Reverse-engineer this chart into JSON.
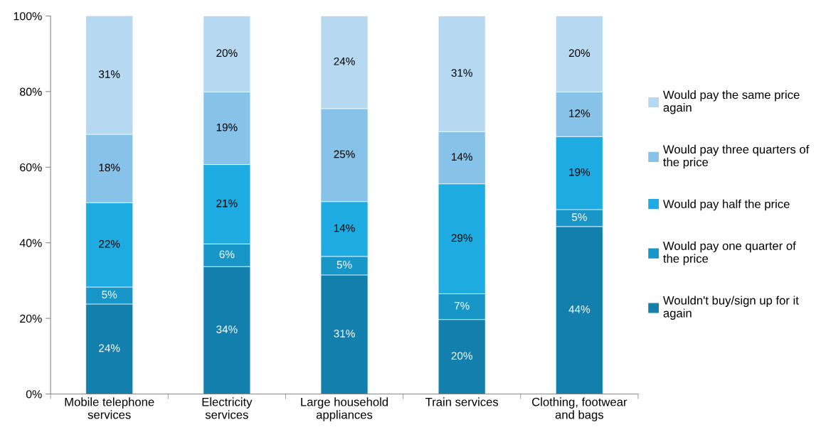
{
  "chart_data": {
    "type": "bar",
    "stacked": true,
    "categories": [
      "Mobile telephone services",
      "Electricity services",
      "Large household appliances",
      "Train services",
      "Clothing, footwear and bags"
    ],
    "series": [
      {
        "name": "Wouldn't buy/sign up for it again",
        "color": "#137fac",
        "values": [
          23.8,
          33.7,
          31.5,
          19.7,
          44.3
        ],
        "value_labels": [
          "24%",
          "34%",
          "31%",
          "20%",
          "44%"
        ]
      },
      {
        "name": "Would pay one quarter of the price",
        "color": "#1896c8",
        "values": [
          4.5,
          6.0,
          4.9,
          6.8,
          4.5
        ],
        "value_labels": [
          "5%",
          "6%",
          "5%",
          "7%",
          "5%"
        ]
      },
      {
        "name": "Would pay half the price",
        "color": "#1eabe1",
        "values": [
          22.3,
          21.0,
          14.5,
          29.1,
          19.3
        ],
        "value_labels": [
          "22%",
          "21%",
          "14%",
          "29%",
          "19%"
        ]
      },
      {
        "name": "Would pay three quarters of the price",
        "color": "#87c3e9",
        "values": [
          18.1,
          19.2,
          24.6,
          13.8,
          11.8
        ],
        "value_labels": [
          "18%",
          "19%",
          "25%",
          "14%",
          "12%"
        ]
      },
      {
        "name": "Would pay the same price again",
        "color": "#b6d8f0",
        "values": [
          31.4,
          20.1,
          24.5,
          30.6,
          20.1
        ],
        "value_labels": [
          "31%",
          "20%",
          "24%",
          "31%",
          "20%"
        ]
      }
    ],
    "ylim": [
      0,
      100
    ],
    "yticks": [
      {
        "value": 0,
        "label": "0%"
      },
      {
        "value": 20,
        "label": "20%"
      },
      {
        "value": 40,
        "label": "40%"
      },
      {
        "value": 60,
        "label": "60%"
      },
      {
        "value": 80,
        "label": "80%"
      },
      {
        "value": 100,
        "label": "100%"
      }
    ],
    "grid": false,
    "legend": "right"
  }
}
